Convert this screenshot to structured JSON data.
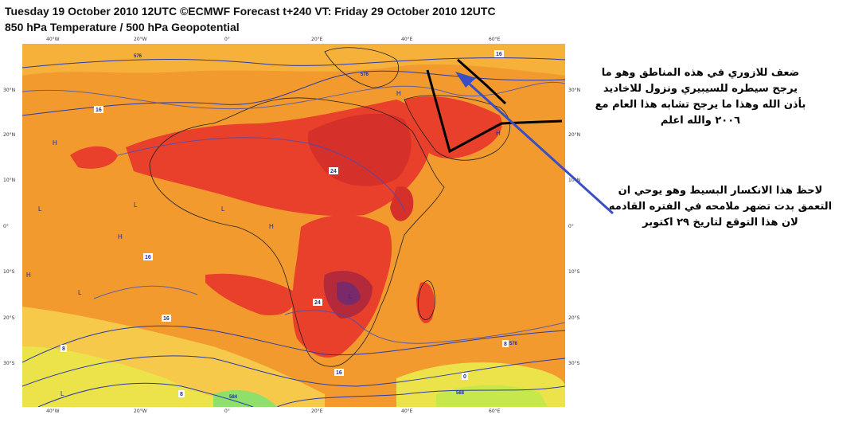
{
  "title": {
    "line1": "Tuesday 19 October 2010 12UTC ©ECMWF Forecast t+240 VT: Friday 29 October 2010 12UTC",
    "line2": "850 hPa Temperature / 500 hPa Geopotential"
  },
  "axes": {
    "lon_ticks": [
      "40°W",
      "20°W",
      "0°",
      "20°E",
      "40°E",
      "60°E"
    ],
    "lat_ticks": [
      "30°N",
      "20°N",
      "10°N",
      "0°",
      "10°S",
      "20°S",
      "30°S"
    ]
  },
  "map_labels": {
    "high": "H",
    "low": "L",
    "contours": [
      "16",
      "24",
      "8",
      "0",
      "576",
      "584",
      "568"
    ]
  },
  "annotations": {
    "note1": [
      "ضعف للازوري في هذه المناطق وهو ما",
      "يرجح سيطره للسيبيري ونزول للاخاديد",
      "بأذن الله وهذا ما يرجح تشابه هذا العام مع",
      "٢٠٠٦ والله اعلم"
    ],
    "note2": [
      "لاحظ هذا الانكسار البسيط وهو يوحي ان",
      "التعمق بدت تضهر ملامحه في الفتره القادمه",
      "لان هذا التوقع لتاريخ ٢٩ اكتوبر"
    ]
  },
  "colors": {
    "ocean_warm": "#f29a2e",
    "land_hot": "#e8312a",
    "core": "#7a2a6a",
    "cool": "#e6e03a",
    "contour": "#2a3aa8",
    "arrow": "#3b4fc4"
  }
}
